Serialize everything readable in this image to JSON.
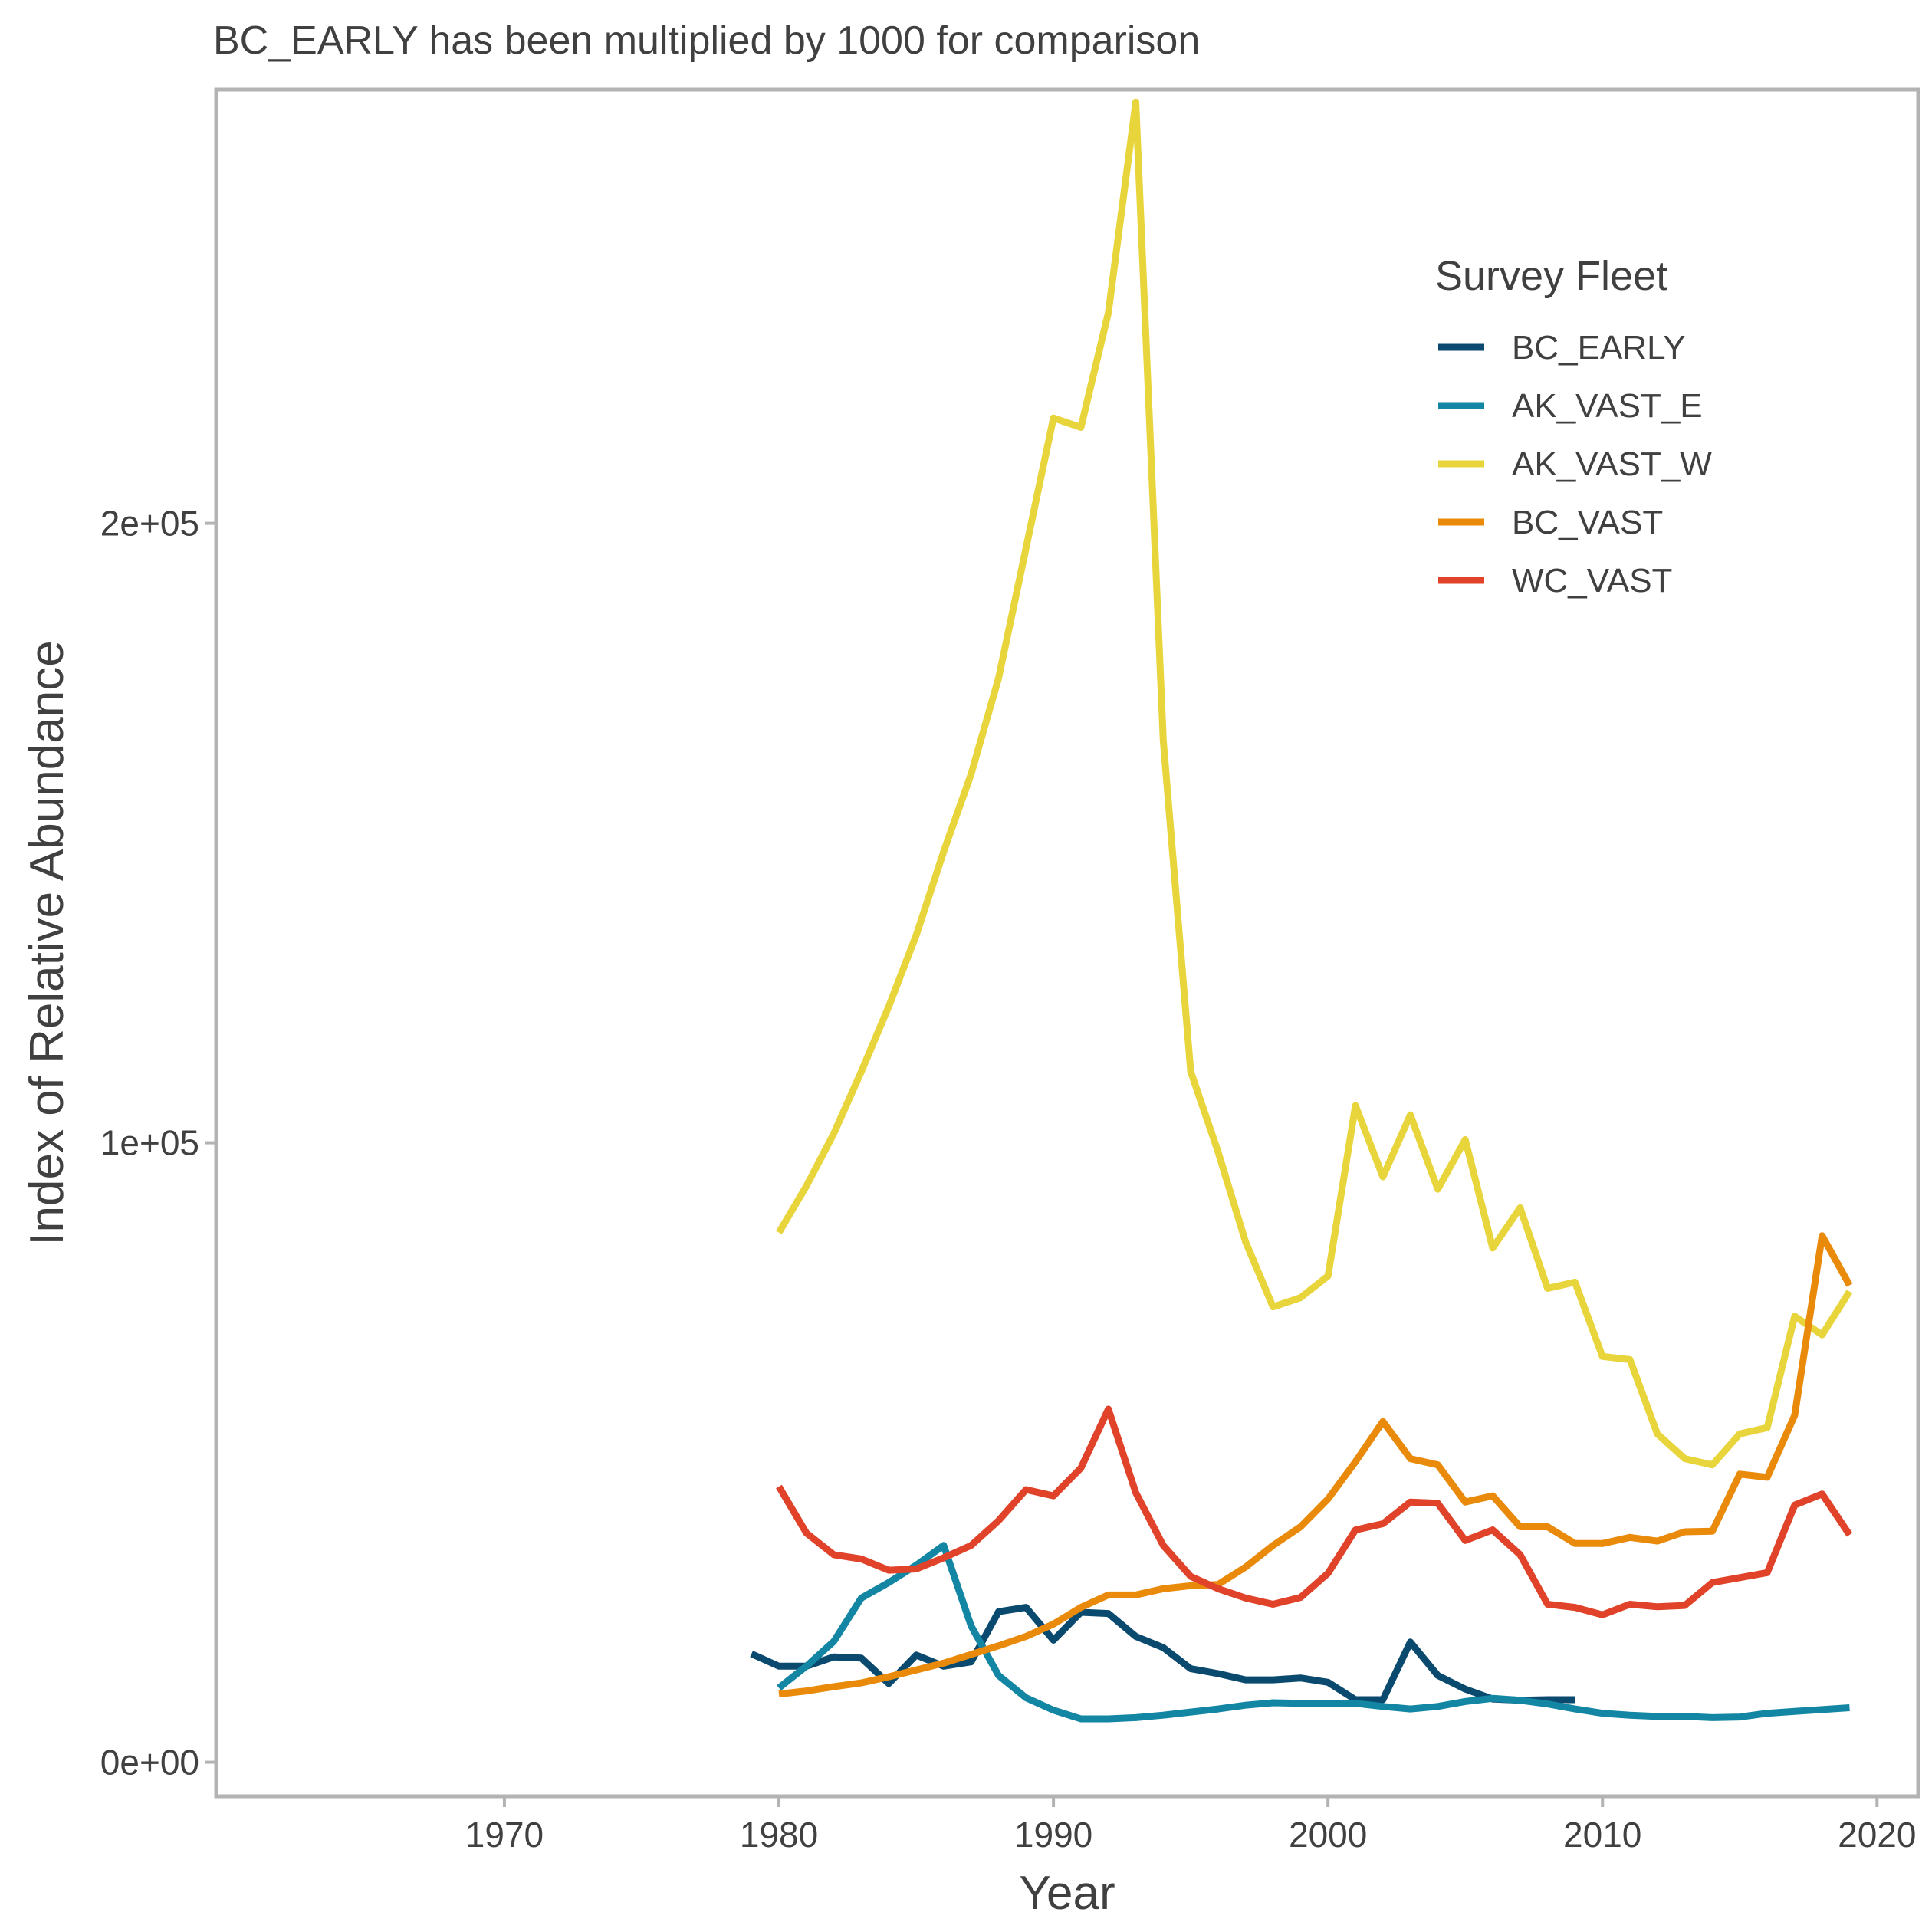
{
  "chart_data": {
    "type": "line",
    "subtitle": "BC_EARLY has been multiplied by 1000 for comparison",
    "xlabel": "Year",
    "ylabel": "Index of Relative Abundance",
    "xlim": [
      1959.5,
      2021.5
    ],
    "ylim": [
      -5500,
      270000
    ],
    "x_ticks": [
      1970,
      1980,
      1990,
      2000,
      2010,
      2020
    ],
    "x_tick_labels": [
      "1970",
      "1980",
      "1990",
      "2000",
      "2010",
      "2020"
    ],
    "y_ticks": [
      0,
      100000,
      200000
    ],
    "y_tick_labels": [
      "0e+00",
      "1e+05",
      "2e+05"
    ],
    "grid": false,
    "legend": {
      "title": "Survey Fleet",
      "position": "top-right"
    },
    "series": [
      {
        "name": "BC_EARLY",
        "color": "#0b4a6f",
        "x": [
          1979,
          1980,
          1981,
          1982,
          1983,
          1984,
          1985,
          1986,
          1987,
          1988,
          1989,
          1990,
          1991,
          1992,
          1993,
          1994,
          1995,
          1996,
          1997,
          1998,
          1999,
          2000,
          2001,
          2002,
          2003,
          2004,
          2005,
          2006,
          2007,
          2008,
          2009
        ],
        "values": [
          17500,
          15500,
          15500,
          17000,
          16800,
          12700,
          17300,
          15500,
          16200,
          24300,
          25000,
          19700,
          24200,
          24000,
          20300,
          18500,
          15100,
          14300,
          13300,
          13300,
          13600,
          12900,
          10100,
          10100,
          19400,
          14000,
          11800,
          10200,
          10000,
          10100,
          10100
        ]
      },
      {
        "name": "AK_VAST_E",
        "color": "#1386a4",
        "x": [
          1980,
          1981,
          1982,
          1983,
          1984,
          1985,
          1986,
          1987,
          1988,
          1989,
          1990,
          1991,
          1992,
          1993,
          1994,
          1995,
          1996,
          1997,
          1998,
          1999,
          2000,
          2001,
          2002,
          2003,
          2004,
          2005,
          2006,
          2007,
          2008,
          2009,
          2010,
          2011,
          2012,
          2013,
          2014,
          2015,
          2016,
          2017,
          2018,
          2019
        ],
        "values": [
          12000,
          15500,
          19500,
          26500,
          29000,
          31800,
          35000,
          22000,
          14000,
          10400,
          8400,
          7000,
          7000,
          7200,
          7600,
          8100,
          8600,
          9200,
          9600,
          9500,
          9500,
          9500,
          9000,
          8600,
          9000,
          9800,
          10300,
          10000,
          9400,
          8600,
          7900,
          7600,
          7400,
          7400,
          7200,
          7300,
          7900,
          8200,
          8500,
          8800
        ]
      },
      {
        "name": "AK_VAST_W",
        "color": "#e8d43b",
        "x": [
          1980,
          1981,
          1982,
          1983,
          1984,
          1985,
          1986,
          1987,
          1988,
          1989,
          1990,
          1991,
          1992,
          1993,
          1994,
          1995,
          1996,
          1997,
          1998,
          1999,
          2000,
          2001,
          2002,
          2003,
          2004,
          2005,
          2006,
          2007,
          2008,
          2009,
          2010,
          2011,
          2012,
          2013,
          2014,
          2015,
          2016,
          2017,
          2018,
          2019
        ],
        "values": [
          85500,
          93000,
          101500,
          111500,
          122000,
          133500,
          147000,
          159500,
          175000,
          196000,
          217000,
          215500,
          234000,
          268000,
          165000,
          111500,
          98500,
          84000,
          73500,
          75000,
          78500,
          106000,
          94500,
          104500,
          92500,
          100500,
          83000,
          89500,
          76500,
          77500,
          65500,
          65000,
          53000,
          49000,
          48000,
          53000,
          54000,
          72000,
          69000,
          76000
        ]
      },
      {
        "name": "BC_VAST",
        "color": "#e98a0b",
        "x": [
          1980,
          1981,
          1982,
          1983,
          1984,
          1985,
          1986,
          1987,
          1988,
          1989,
          1990,
          1991,
          1992,
          1993,
          1994,
          1995,
          1996,
          1997,
          1998,
          1999,
          2000,
          2001,
          2002,
          2003,
          2004,
          2005,
          2006,
          2007,
          2008,
          2009,
          2010,
          2011,
          2012,
          2013,
          2014,
          2015,
          2016,
          2017,
          2018,
          2019
        ],
        "values": [
          11000,
          11500,
          12200,
          12800,
          13800,
          14900,
          16000,
          17400,
          18800,
          20300,
          22300,
          25000,
          27000,
          27000,
          28000,
          28500,
          28700,
          31500,
          35000,
          38000,
          42500,
          48500,
          55000,
          49000,
          48000,
          42000,
          43000,
          38000,
          38000,
          35300,
          35300,
          36300,
          35700,
          37200,
          37300,
          46500,
          46000,
          56000,
          85000,
          77000
        ]
      },
      {
        "name": "WC_VAST",
        "color": "#e0432a",
        "x": [
          1980,
          1981,
          1982,
          1983,
          1984,
          1985,
          1986,
          1987,
          1988,
          1989,
          1990,
          1991,
          1992,
          1993,
          1994,
          1995,
          1996,
          1997,
          1998,
          1999,
          2000,
          2001,
          2002,
          2003,
          2004,
          2005,
          2006,
          2007,
          2008,
          2009,
          2010,
          2011,
          2012,
          2013,
          2014,
          2015,
          2016,
          2017,
          2018,
          2019
        ],
        "values": [
          44500,
          37000,
          33500,
          32800,
          31000,
          31200,
          33000,
          35000,
          39000,
          44000,
          43000,
          47500,
          57000,
          43500,
          35000,
          30000,
          28000,
          26500,
          25500,
          26600,
          30500,
          37500,
          38500,
          42000,
          41800,
          35800,
          37500,
          33500,
          25500,
          25000,
          23800,
          25500,
          25100,
          25300,
          29000,
          29800,
          30600,
          41500,
          43300,
          36700
        ]
      }
    ]
  }
}
